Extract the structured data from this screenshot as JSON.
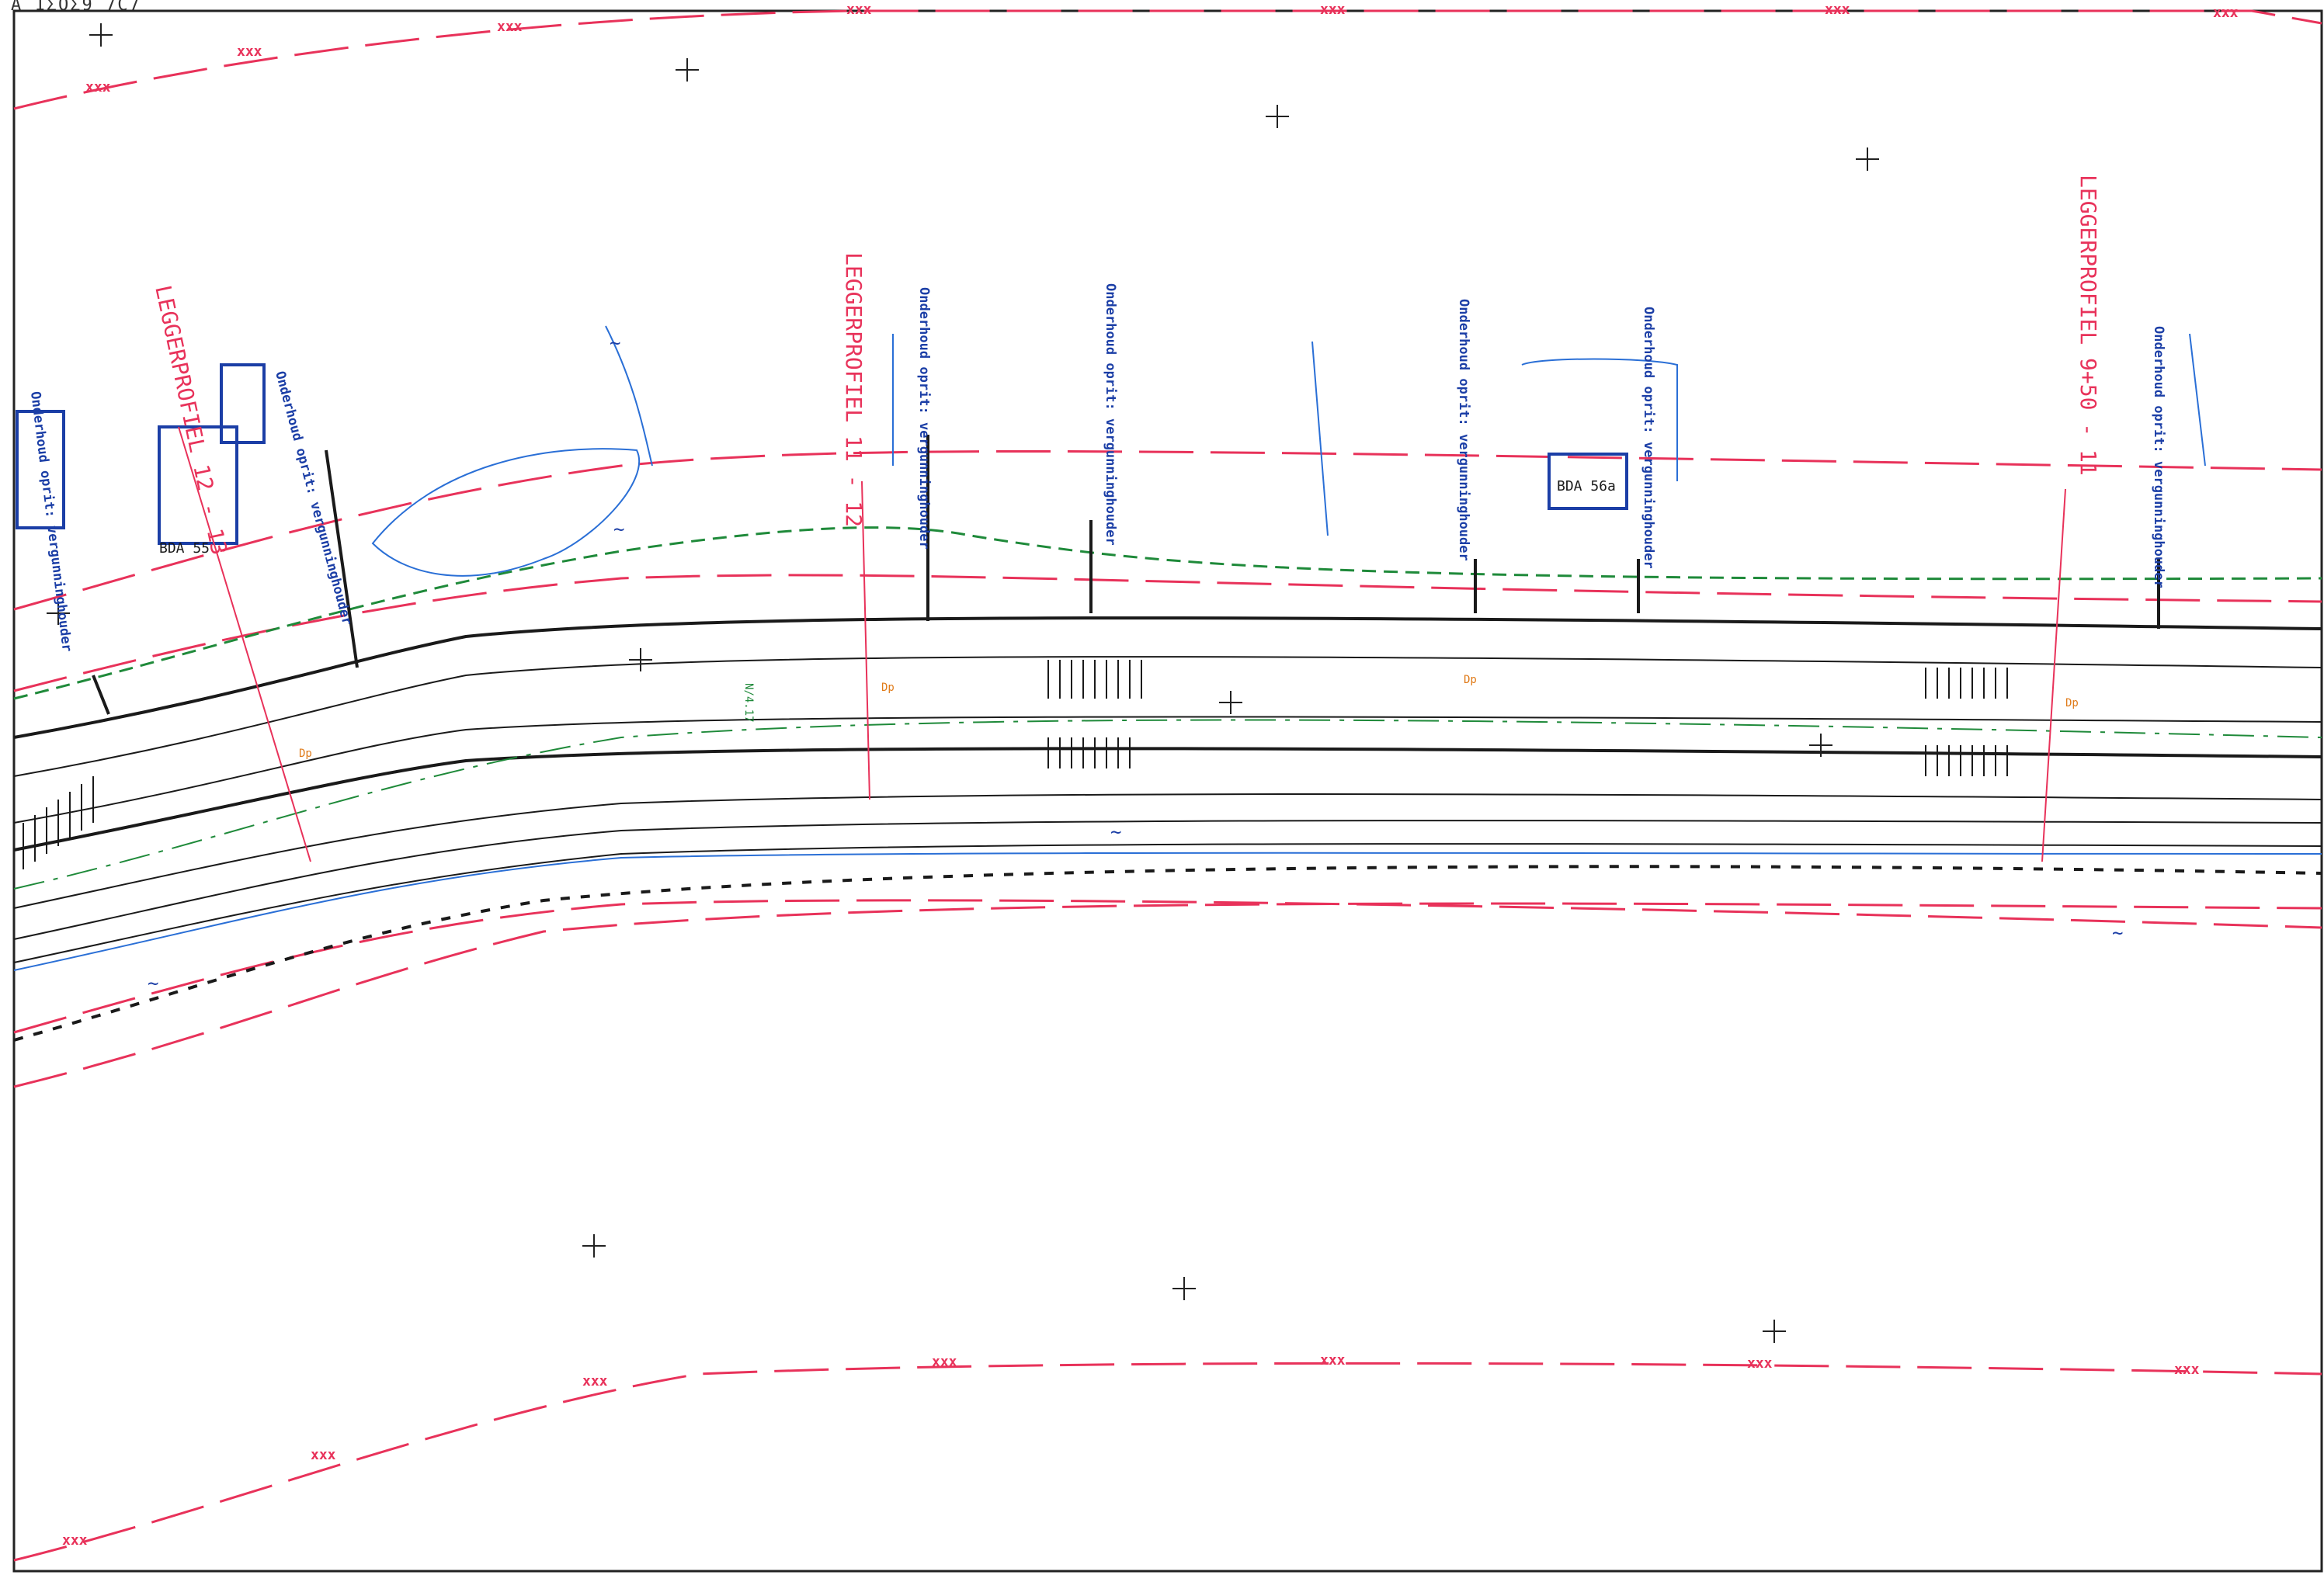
{
  "sheet": {
    "corner_label": "A  1ΣOΣ9 7C7",
    "line_marker": "xxx",
    "profiles": [
      {
        "id": "profile-left",
        "label": "LEGGERPROFIEL 12 - 13"
      },
      {
        "id": "profile-middle",
        "label": "LEGGERPROFIEL 11 - 12"
      },
      {
        "id": "profile-right",
        "label": "LEGGERPROFIEL 9+50 - 11"
      }
    ],
    "maintenance_label": "Onderhoud oprit: vergunninghouder",
    "maintenance_label_alt": "Onderhoud oprit: vergunninghouder",
    "buildings": [
      {
        "id": "building-bda-55",
        "label": "BDA 55"
      },
      {
        "id": "building-bda-56a",
        "label": "BDA 56a"
      }
    ],
    "markers": {
      "water_symbol": "~",
      "hydrant_label": "Dp",
      "km_label": "N/4.17"
    },
    "colors": {
      "fence_red": "#e8325a",
      "road_black": "#1a1a1a",
      "water_blue": "#2a6fd6",
      "label_blue": "#1b3ea6",
      "verge_green": "#1f8a3a",
      "hydrant_orange": "#e07b1a"
    }
  }
}
